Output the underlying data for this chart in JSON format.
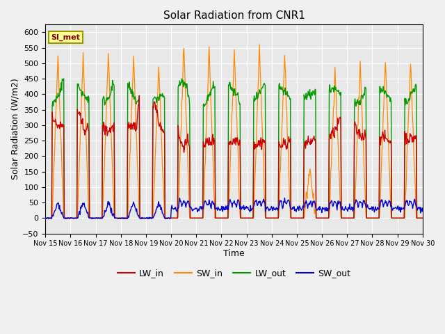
{
  "title": "Solar Radiation from CNR1",
  "xlabel": "Time",
  "ylabel": "Solar Radiation (W/m2)",
  "ylim": [
    -50,
    625
  ],
  "yticks": [
    -50,
    0,
    50,
    100,
    150,
    200,
    250,
    300,
    350,
    400,
    450,
    500,
    550,
    600
  ],
  "x_tick_labels": [
    "Nov 15",
    "Nov 16",
    "Nov 17",
    "Nov 18",
    "Nov 19",
    "Nov 20",
    "Nov 21",
    "Nov 22",
    "Nov 23",
    "Nov 24",
    "Nov 25",
    "Nov 26",
    "Nov 27",
    "Nov 28",
    "Nov 29",
    "Nov 30"
  ],
  "colors": {
    "LW_in": "#cc0000",
    "SW_in": "#ff8800",
    "LW_out": "#009900",
    "SW_out": "#0000cc",
    "background": "#e8e8e8",
    "plot_bg": "#e8e8e8",
    "grid": "#ffffff"
  },
  "annotation_text": "SI_met",
  "annotation_bg": "#ffff99",
  "annotation_border": "#999900",
  "n_days": 15,
  "figsize": [
    6.4,
    4.8
  ],
  "dpi": 100
}
